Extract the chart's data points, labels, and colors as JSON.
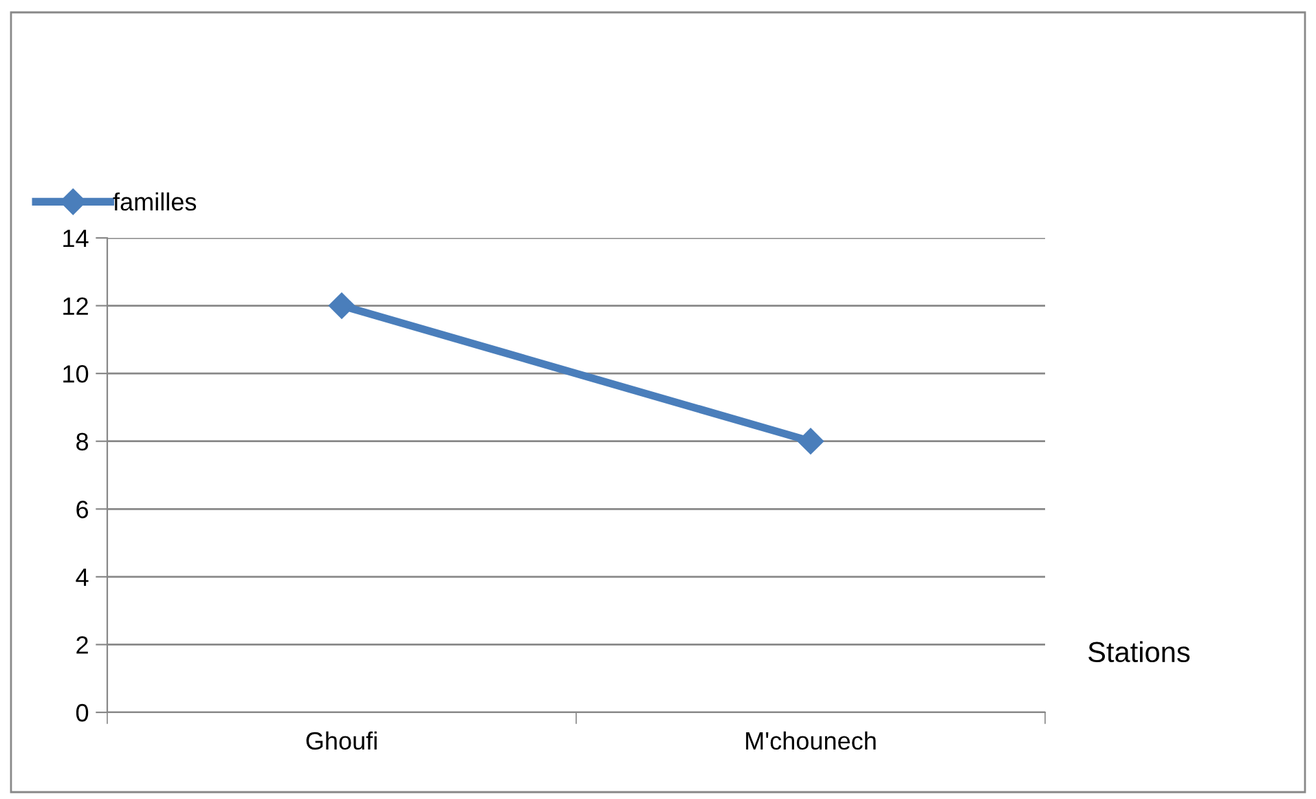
{
  "chart_data": {
    "type": "line",
    "xlabel": "Stations",
    "categories": [
      "Ghoufi",
      "M'chounech"
    ],
    "series": [
      {
        "name": "familles",
        "color": "#4a7ebb",
        "values": [
          12,
          8
        ]
      }
    ],
    "ylim": [
      0,
      14
    ],
    "yticks": [
      0,
      2,
      4,
      6,
      8,
      10,
      12,
      14
    ],
    "grid": "y",
    "legend": "top left",
    "marker": "diamond",
    "line_style": "solid"
  }
}
